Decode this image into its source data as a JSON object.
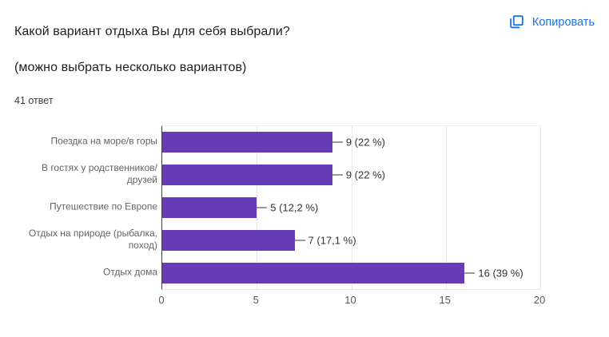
{
  "header": {
    "title_line1": "Какой вариант отдыха Вы для себя выбрали?",
    "title_line2": "(можно выбрать несколько вариантов)",
    "responses_count": "41 ответ",
    "copy_button": "Копировать"
  },
  "colors": {
    "bar": "#673ab7",
    "accent": "#1a73e8"
  },
  "chart_data": {
    "type": "bar",
    "orientation": "horizontal",
    "categories": [
      "Поездка на море/в горы",
      "В гостях у родственников/\nдрузей",
      "Путешествие по Европе",
      "Отдых на природе (рыбалка,\nпоход)",
      "Отдых дома"
    ],
    "values": [
      9,
      9,
      5,
      7,
      16
    ],
    "value_labels": [
      "9 (22 %)",
      "9 (22 %)",
      "5 (12,2 %)",
      "7 (17,1 %)",
      "16 (39 %)"
    ],
    "x_ticks": [
      0,
      5,
      10,
      15,
      20
    ],
    "xlim": [
      0,
      20
    ],
    "grid": "vertical",
    "legend": false,
    "xlabel": "",
    "ylabel": ""
  }
}
